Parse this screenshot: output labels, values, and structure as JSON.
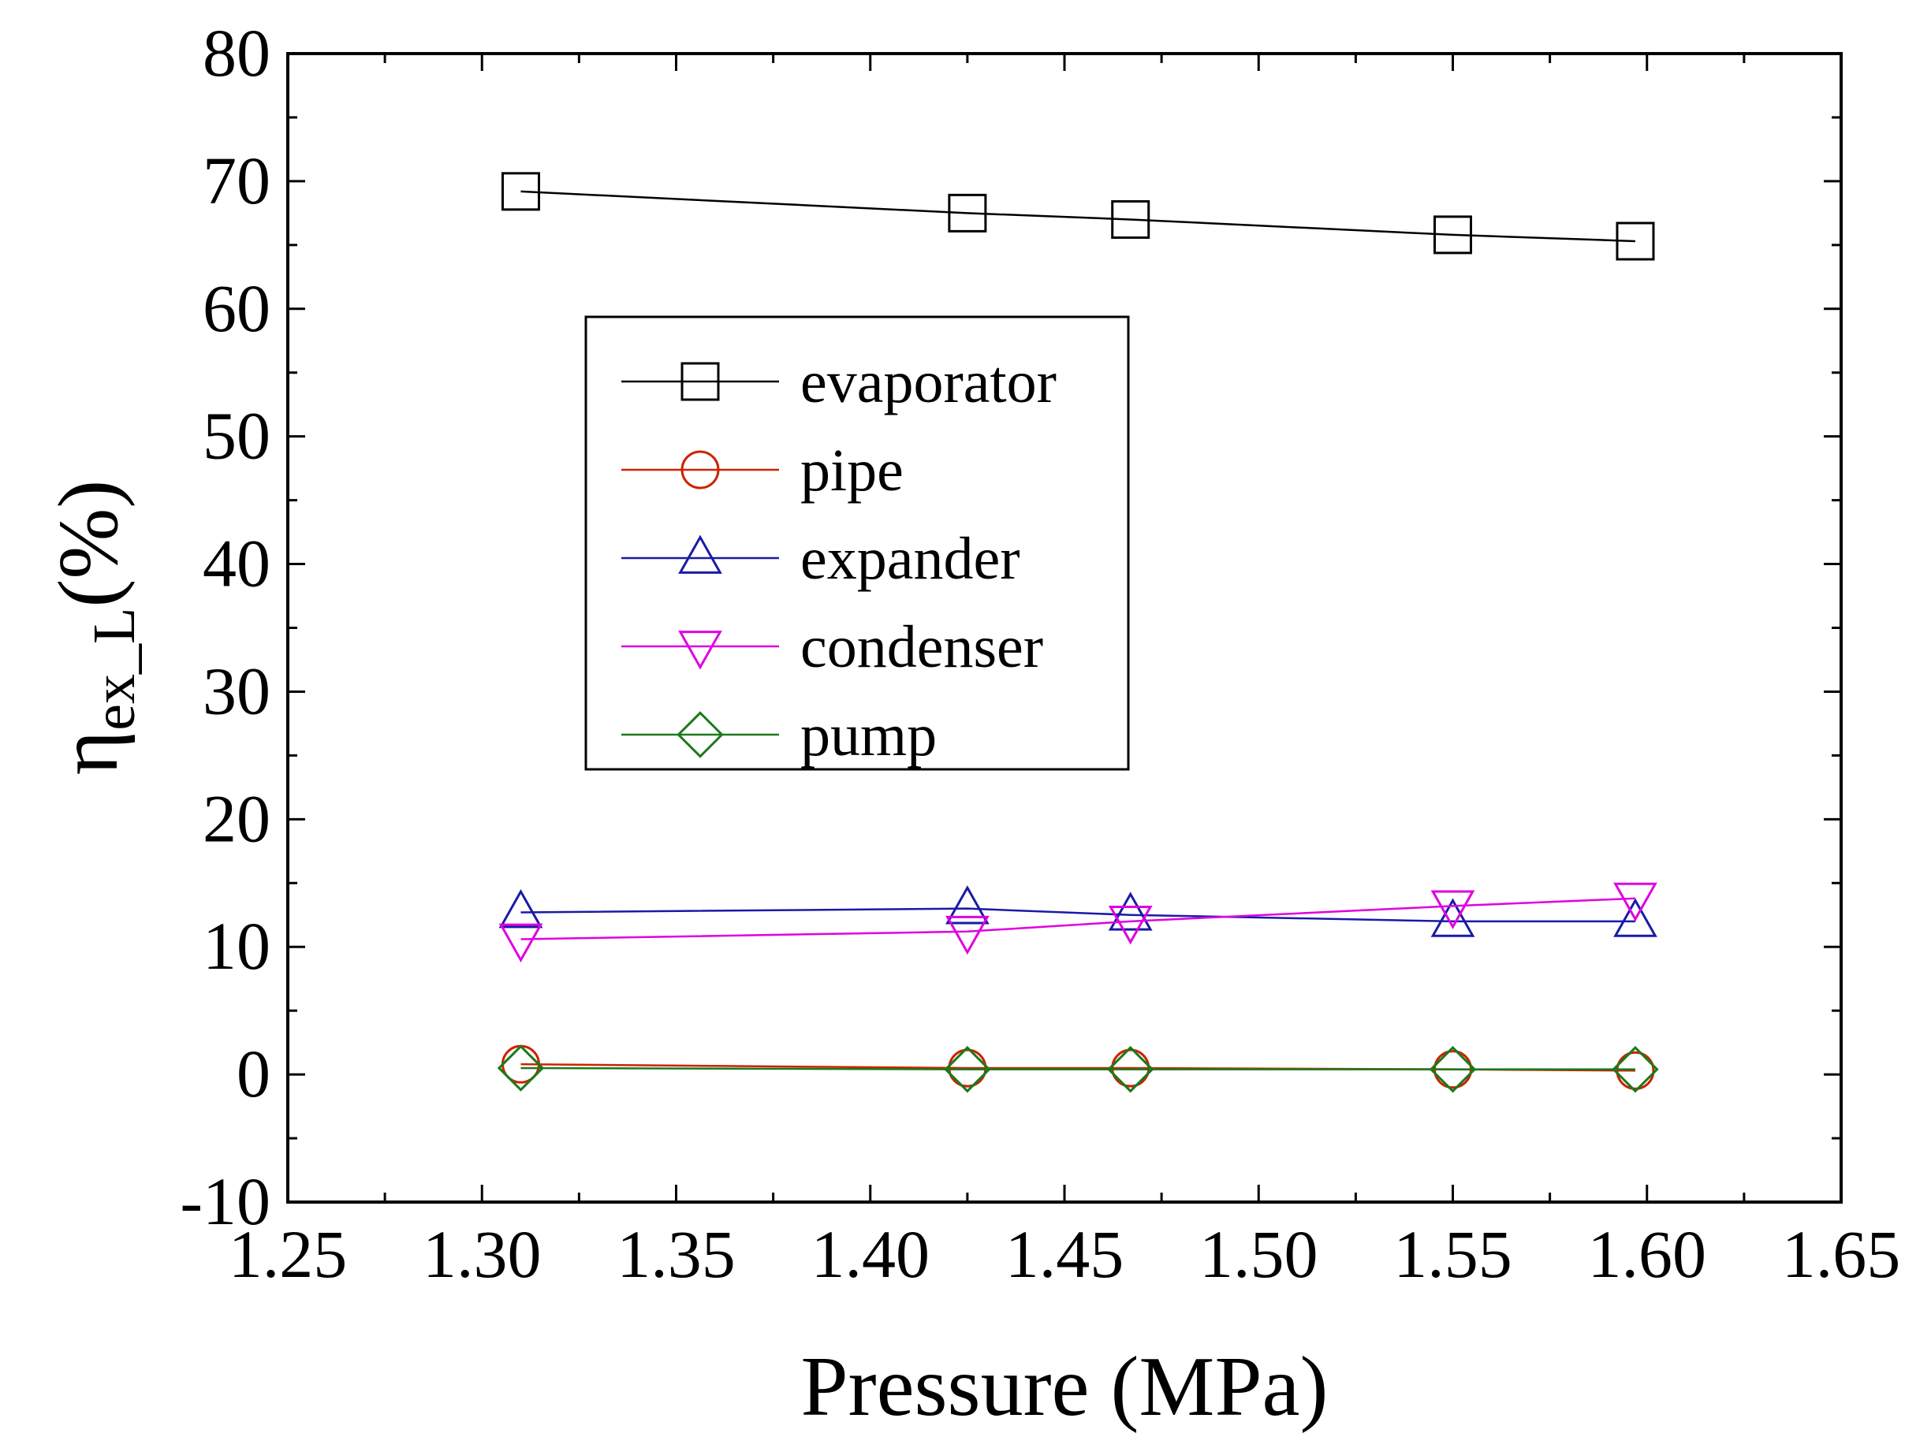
{
  "chart_data": {
    "type": "line",
    "title": "",
    "xlabel": "Pressure (MPa)",
    "ylabel": {
      "main": "η",
      "subscript": "ex_L",
      "suffix": "(%)"
    },
    "xlim": [
      1.25,
      1.65
    ],
    "ylim": [
      -10,
      80
    ],
    "x_ticks": [
      1.25,
      1.3,
      1.35,
      1.4,
      1.45,
      1.5,
      1.55,
      1.6,
      1.65
    ],
    "x_tick_labels": [
      "1.25",
      "1.30",
      "1.35",
      "1.40",
      "1.45",
      "1.50",
      "1.55",
      "1.60",
      "1.65"
    ],
    "y_ticks": [
      -10,
      0,
      10,
      20,
      30,
      40,
      50,
      60,
      70,
      80
    ],
    "y_tick_labels": [
      "-10",
      "0",
      "10",
      "20",
      "30",
      "40",
      "50",
      "60",
      "70",
      "80"
    ],
    "grid": false,
    "legend_position": "upper-left inside",
    "x": [
      1.31,
      1.425,
      1.467,
      1.55,
      1.597
    ],
    "series": [
      {
        "name": "evaporator",
        "color": "#000000",
        "marker": "square",
        "values": [
          69.2,
          67.5,
          67.0,
          65.8,
          65.3
        ]
      },
      {
        "name": "pipe",
        "color": "#cc2200",
        "marker": "circle",
        "values": [
          0.8,
          0.5,
          0.5,
          0.4,
          0.3
        ]
      },
      {
        "name": "expander",
        "color": "#1a1aa6",
        "marker": "triangle-up",
        "values": [
          12.7,
          13.0,
          12.5,
          12.0,
          12.0
        ]
      },
      {
        "name": "condenser",
        "color": "#e000e0",
        "marker": "triangle-down",
        "values": [
          10.6,
          11.2,
          12.0,
          13.2,
          13.8
        ]
      },
      {
        "name": "pump",
        "color": "#1a7a1a",
        "marker": "diamond",
        "values": [
          0.5,
          0.4,
          0.4,
          0.4,
          0.4
        ]
      }
    ]
  }
}
